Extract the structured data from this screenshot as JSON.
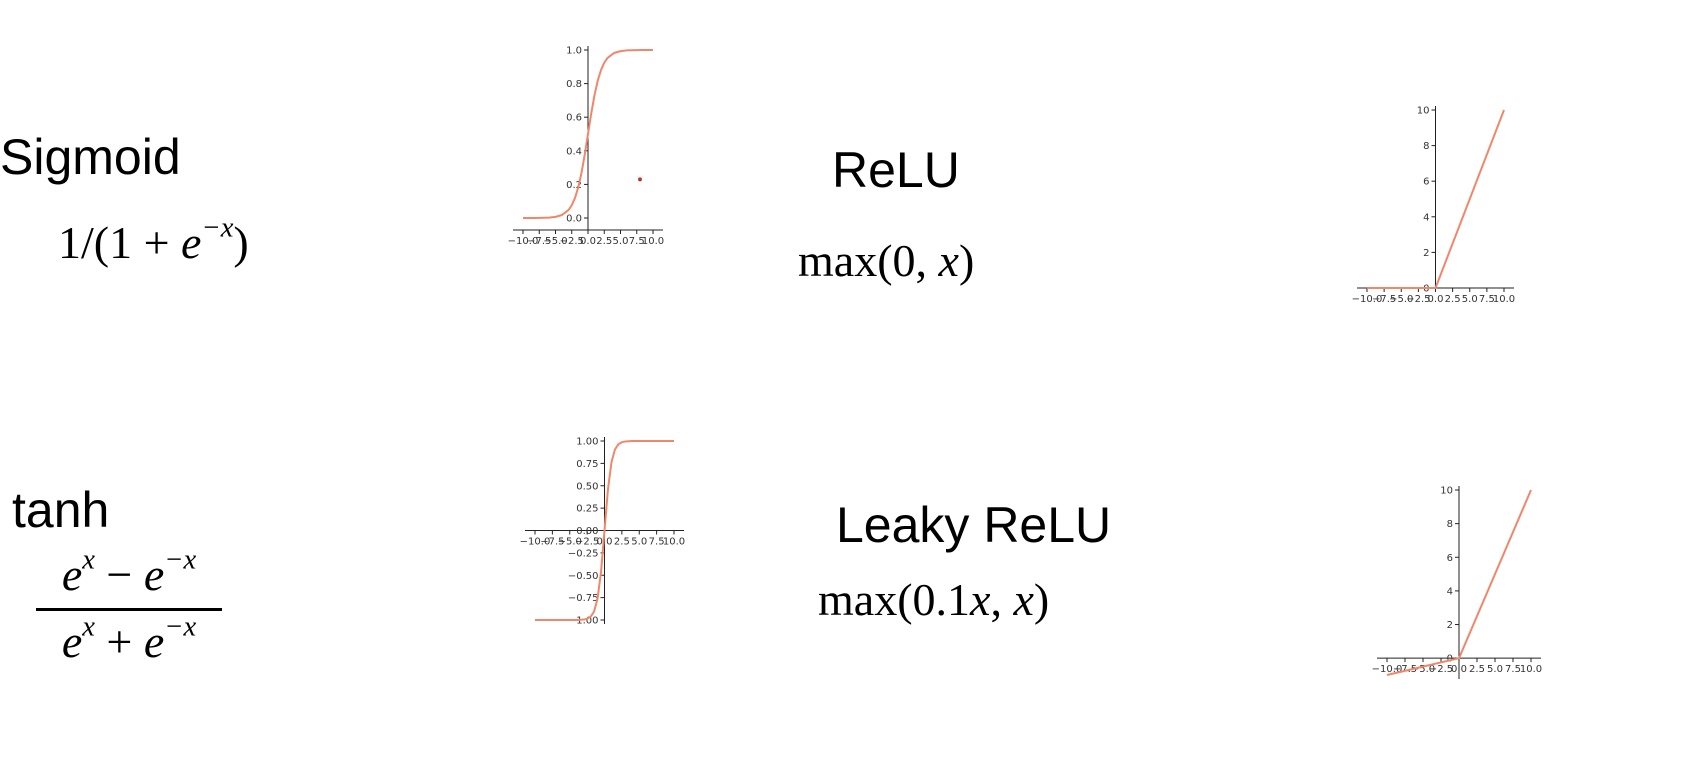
{
  "functions": [
    {
      "name": "Sigmoid",
      "formula_text": "1/(1 + e^{-x})"
    },
    {
      "name": "ReLU",
      "formula_text": "max(0, x)"
    },
    {
      "name": "tanh",
      "formula_text": "(e^x − e^{-x}) / (e^x + e^{-x})"
    },
    {
      "name": "Leaky ReLU",
      "formula_text": "max(0.1x, x)"
    }
  ],
  "formula_parts": {
    "sigmoid": {
      "lead": "1/(1 + ",
      "base": "e",
      "exp": "−x",
      "tail": ")"
    },
    "relu": {
      "lead": "max(0, ",
      "var": "x",
      "tail": ")"
    },
    "tanh": {
      "num_a": "e",
      "num_a_exp": "x",
      "num_op": " − ",
      "num_b": "e",
      "num_b_exp": "−x",
      "den_a": "e",
      "den_a_exp": "x",
      "den_op": " + ",
      "den_b": "e",
      "den_b_exp": "−x"
    },
    "leaky": {
      "lead": "max(0.1",
      "var1": "x",
      "mid": ", ",
      "var2": "x",
      "tail": ")"
    }
  },
  "colors": {
    "curve": "#f0876a",
    "axis": "#222222",
    "marker": "#c0392b"
  },
  "chart_data": [
    {
      "type": "line",
      "function": "sigmoid",
      "x": [
        -10,
        -8,
        -6,
        -5,
        -4,
        -3,
        -2.5,
        -2,
        -1.5,
        -1,
        -0.5,
        0,
        0.5,
        1,
        1.5,
        2,
        2.5,
        3,
        4,
        5,
        6,
        8,
        10
      ],
      "y": [
        0.0,
        0.0003,
        0.0025,
        0.0067,
        0.018,
        0.0474,
        0.0759,
        0.1192,
        0.1824,
        0.2689,
        0.3775,
        0.5,
        0.6225,
        0.7311,
        0.8176,
        0.8808,
        0.9241,
        0.9526,
        0.982,
        0.9933,
        0.9975,
        0.9997,
        1.0
      ],
      "xlim": [
        -10,
        10
      ],
      "ylim": [
        0,
        1
      ],
      "x_ticks": [
        -10,
        -7.5,
        -5,
        -2.5,
        0,
        2.5,
        5,
        7.5,
        10
      ],
      "x_tick_labels": [
        "−10.0",
        "−7.5",
        "−5.0",
        "−2.5",
        "0.0",
        "2.5",
        "5.0",
        "7.5",
        "10.0"
      ],
      "y_ticks": [
        0,
        0.2,
        0.4,
        0.6,
        0.8,
        1.0
      ],
      "y_tick_labels": [
        "0.0",
        "0.2",
        "0.4",
        "0.6",
        "0.8",
        "1.0"
      ],
      "annotations": [
        {
          "kind": "point",
          "x": 8,
          "y": 0.23
        }
      ]
    },
    {
      "type": "line",
      "function": "relu",
      "x": [
        -10,
        0,
        10
      ],
      "y": [
        0,
        0,
        10
      ],
      "xlim": [
        -10,
        10
      ],
      "ylim": [
        0,
        10
      ],
      "x_ticks": [
        -10,
        -7.5,
        -5,
        -2.5,
        0,
        2.5,
        5,
        7.5,
        10
      ],
      "x_tick_labels": [
        "−10.0",
        "−7.5",
        "−5.0",
        "−2.5",
        "0.0",
        "2.5",
        "5.0",
        "7.5",
        "10.0"
      ],
      "y_ticks": [
        0,
        2,
        4,
        6,
        8,
        10
      ],
      "y_tick_labels": [
        "0",
        "2",
        "4",
        "6",
        "8",
        "10"
      ]
    },
    {
      "type": "line",
      "function": "tanh",
      "x": [
        -10,
        -4,
        -3,
        -2.5,
        -2,
        -1.5,
        -1,
        -0.5,
        0,
        0.5,
        1,
        1.5,
        2,
        2.5,
        3,
        4,
        10
      ],
      "y": [
        -1.0,
        -0.9993,
        -0.9951,
        -0.9866,
        -0.964,
        -0.9051,
        -0.7616,
        -0.4621,
        0,
        0.4621,
        0.7616,
        0.9051,
        0.964,
        0.9866,
        0.9951,
        0.9993,
        1.0
      ],
      "xlim": [
        -10,
        10
      ],
      "ylim": [
        -1,
        1
      ],
      "x_ticks": [
        -10,
        -7.5,
        -5,
        -2.5,
        0,
        2.5,
        5,
        7.5,
        10
      ],
      "x_tick_labels": [
        "−10.0",
        "−7.5",
        "−5.0",
        "−2.5",
        "0.0",
        "2.5",
        "5.0",
        "7.5",
        "10.0"
      ],
      "y_ticks": [
        -1,
        -0.75,
        -0.5,
        -0.25,
        0,
        0.25,
        0.5,
        0.75,
        1
      ],
      "y_tick_labels": [
        "−1.00",
        "−0.75",
        "−0.50",
        "−0.25",
        "0.00",
        "0.25",
        "0.50",
        "0.75",
        "1.00"
      ]
    },
    {
      "type": "line",
      "function": "leaky_relu",
      "x": [
        -10,
        0,
        10
      ],
      "y": [
        -1,
        0,
        10
      ],
      "xlim": [
        -10,
        10
      ],
      "ylim": [
        -1,
        10
      ],
      "x_ticks": [
        -10,
        -7.5,
        -5,
        -2.5,
        0,
        2.5,
        5,
        7.5,
        10
      ],
      "x_tick_labels": [
        "−10.0",
        "−7.5",
        "−5.0",
        "−2.5",
        "0.0",
        "2.5",
        "5.0",
        "7.5",
        "10.0"
      ],
      "y_ticks": [
        0,
        2,
        4,
        6,
        8,
        10
      ],
      "y_tick_labels": [
        "0",
        "2",
        "4",
        "6",
        "8",
        "10"
      ]
    }
  ]
}
